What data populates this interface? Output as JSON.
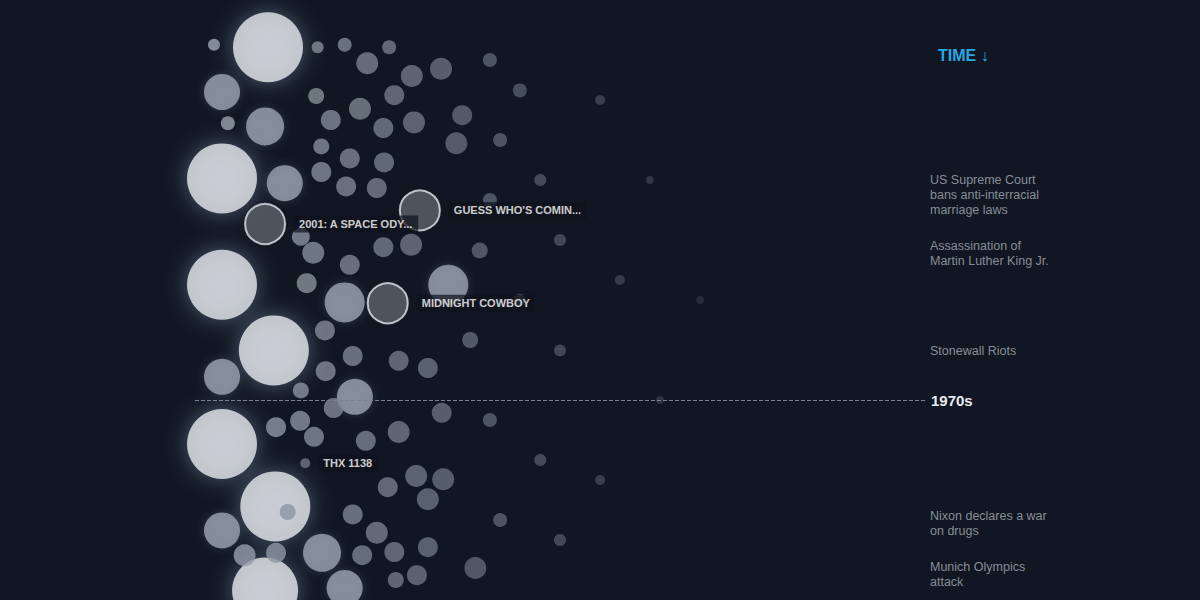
{
  "chart_data": {
    "type": "scatter",
    "title": "TIME ↓",
    "xlim": [
      0,
      100
    ],
    "ylim": [
      1965.5,
      1972.5
    ],
    "grid": false,
    "tick_labels": false,
    "x": [
      10.0,
      3.7,
      9.6,
      3.7,
      12.3,
      3.7,
      10.8,
      3.7,
      3.7,
      11.0,
      3.7,
      9.6,
      20.5,
      34.7,
      17.4,
      20.5,
      21.9,
      2.6,
      4.5,
      16.8,
      20.5,
      23.6,
      29.7,
      33.7,
      27.3,
      26.6,
      16.6,
      18.6,
      22.6,
      25.8,
      30.0,
      36.6,
      35.8,
      17.3,
      21.2,
      25.9,
      17.3,
      20.7,
      24.9,
      14.5,
      16.2,
      21.2,
      25.8,
      29.6,
      15.3,
      17.8,
      21.6,
      27.9,
      31.9,
      17.9,
      14.5,
      33.8,
      11.1,
      14.4,
      19.0,
      16.3,
      27.9,
      23.4,
      30.3,
      34.0,
      26.4,
      21.6,
      24.9,
      31.9,
      12.7,
      6.8,
      11.1,
      22.9,
      27.3,
      31.9,
      38.4,
      30.4,
      27.5,
      40.4,
      44.5,
      41.8,
      47.3,
      40.4,
      50.0,
      39.0,
      44.5,
      37.7,
      50.0,
      40.4,
      47.3,
      41.8,
      50.0,
      55.5,
      58.2,
      55.5,
      62.3,
      63.7,
      69.2
    ],
    "y": [
      1965.59,
      1966.15,
      1966.58,
      1967.23,
      1967.29,
      1968.56,
      1969.38,
      1969.71,
      1970.55,
      1971.33,
      1971.63,
      1972.38,
      1968.78,
      1968.56,
      1971.91,
      1972.35,
      1969.96,
      1965.56,
      1966.54,
      1965.59,
      1965.56,
      1965.79,
      1965.95,
      1965.86,
      1966.19,
      1965.59,
      1966.2,
      1966.5,
      1966.36,
      1966.6,
      1966.53,
      1966.44,
      1966.79,
      1966.83,
      1966.98,
      1967.03,
      1967.15,
      1967.33,
      1967.35,
      1967.96,
      1968.16,
      1968.31,
      1968.09,
      1968.06,
      1968.54,
      1969.13,
      1969.45,
      1969.51,
      1969.6,
      1969.64,
      1969.88,
      1970.16,
      1970.34,
      1970.26,
      1970.1,
      1970.46,
      1970.4,
      1970.51,
      1970.95,
      1970.99,
      1971.09,
      1971.43,
      1971.66,
      1971.24,
      1971.4,
      1971.94,
      1971.91,
      1971.94,
      1971.9,
      1971.84,
      1972.1,
      1972.19,
      1972.25,
      1965.75,
      1966.13,
      1966.75,
      1967.25,
      1967.5,
      1968.0,
      1968.13,
      1968.75,
      1969.25,
      1969.38,
      1970.25,
      1970.75,
      1971.5,
      1971.75,
      1966.25,
      1968.5,
      1971.0,
      1967.25,
      1970.0,
      1968.75
    ],
    "size": [
      70,
      36,
      38,
      70,
      36,
      70,
      70,
      36,
      70,
      70,
      36,
      66,
      40,
      40,
      38,
      36,
      36,
      12,
      14,
      12,
      14,
      22,
      22,
      22,
      20,
      14,
      16,
      20,
      22,
      20,
      22,
      20,
      22,
      16,
      20,
      20,
      20,
      20,
      20,
      18,
      22,
      20,
      20,
      22,
      20,
      20,
      20,
      20,
      20,
      20,
      16,
      20,
      20,
      20,
      20,
      20,
      22,
      20,
      22,
      22,
      20,
      20,
      22,
      22,
      16,
      22,
      20,
      20,
      20,
      20,
      22,
      20,
      16,
      14,
      14,
      14,
      12,
      14,
      12,
      16,
      12,
      16,
      12,
      14,
      12,
      14,
      12,
      10,
      10,
      10,
      8,
      8,
      8
    ],
    "labeled": [
      {
        "label": "2001: A SPACE ODY...",
        "x": 9.6,
        "y": 1967.8,
        "size": 40
      },
      {
        "label": "GUESS WHO'S COMIN...",
        "x": 30.8,
        "y": 1967.63,
        "size": 40
      },
      {
        "label": "MIDNIGHT COWBOY",
        "x": 26.4,
        "y": 1968.79,
        "size": 40
      },
      {
        "label": "THX 1138",
        "x": 15.1,
        "y": 1970.79,
        "size": 10
      }
    ],
    "decades": [
      {
        "value": 1970,
        "label": "1970s"
      }
    ],
    "events": [
      {
        "label": "US Supreme Court bans anti-interracial marriage laws",
        "y": 1967.15
      },
      {
        "label": "Assassination of Martin Luther King Jr.",
        "y": 1967.98
      },
      {
        "label": "Stonewall Riots",
        "y": 1969.29
      },
      {
        "label": "Nixon declares a war on drugs",
        "y": 1971.36
      },
      {
        "label": "Munich Olympics attack",
        "y": 1971.99
      }
    ]
  }
}
